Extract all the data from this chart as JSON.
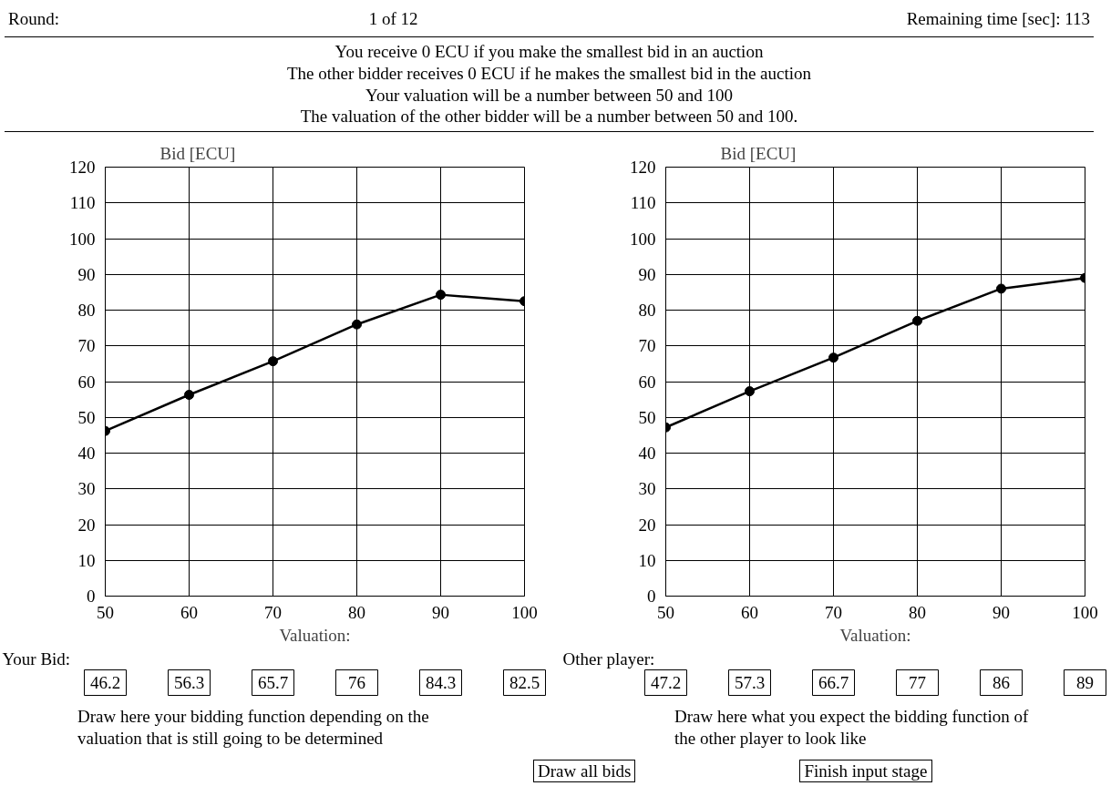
{
  "chart_data": [
    {
      "type": "other",
      "annotations": [
        "Round:",
        "1 of 12",
        "Remaining time [sec]: 113",
        "You receive 0 ECU if you make the smallest bid in an auction",
        "The other bidder receives 0 ECU if he makes the smallest bid in the auction",
        "Your valuation will be a number between 50 and 100",
        "The valuation of the other bidder will be a number between 50 and 100."
      ]
    },
    {
      "type": "line",
      "ylabel": "Bid [ECU]",
      "xlabel": "Valuation:",
      "x": [
        50,
        60,
        70,
        80,
        90,
        100
      ],
      "xlim": [
        50,
        100
      ],
      "xticks": [
        50,
        60,
        70,
        80,
        90,
        100
      ],
      "ylim": [
        0,
        120
      ],
      "yticks": [
        0,
        10,
        20,
        30,
        40,
        50,
        60,
        70,
        80,
        90,
        100,
        110,
        120
      ],
      "grid": true,
      "marker": "circle",
      "line_style": "solid",
      "series": [
        {
          "color": "#000000",
          "values": [
            46.2,
            56.3,
            65.7,
            76,
            84.3,
            82.5
          ]
        }
      ]
    },
    {
      "type": "other",
      "title": "Your Bid:",
      "annotations": [
        "46.2",
        "56.3",
        "65.7",
        "76",
        "84.3",
        "82.5",
        "Draw here your bidding function depending on the valuation that is still going to be determined"
      ]
    },
    {
      "type": "line",
      "ylabel": "Bid [ECU]",
      "xlabel": "Valuation:",
      "x": [
        50,
        60,
        70,
        80,
        90,
        100
      ],
      "xlim": [
        50,
        100
      ],
      "xticks": [
        50,
        60,
        70,
        80,
        90,
        100
      ],
      "ylim": [
        0,
        120
      ],
      "yticks": [
        0,
        10,
        20,
        30,
        40,
        50,
        60,
        70,
        80,
        90,
        100,
        110,
        120
      ],
      "grid": true,
      "marker": "circle",
      "line_style": "solid",
      "series": [
        {
          "color": "#000000",
          "values": [
            47.2,
            57.3,
            66.7,
            77,
            86,
            89
          ]
        }
      ]
    },
    {
      "type": "other",
      "title": "Other player:",
      "annotations": [
        "47.2",
        "57.3",
        "66.7",
        "77",
        "86",
        "89",
        "Draw here what you expect the bidding function of the other player to look like"
      ]
    },
    {
      "type": "other",
      "annotations": [
        "Draw all bids",
        "Finish input stage"
      ]
    }
  ]
}
